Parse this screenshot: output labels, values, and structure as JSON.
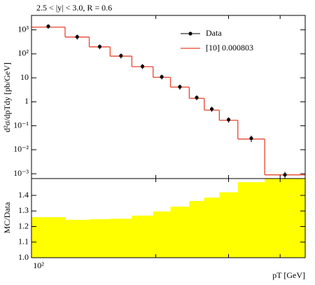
{
  "chart_data": {
    "type": "histogram-ratio",
    "title": "2.5 < |y| < 3.0, R = 0.6",
    "xlabel": "pT [GeV]",
    "ylabel": "d²σ/dpTdy [pb/GeV]",
    "ratio_ylabel": "MC/Data",
    "xlog": true,
    "ylog": true,
    "bins": [
      100,
      120.6,
      138,
      155,
      175,
      197,
      217,
      241,
      262,
      285,
      316,
      367,
      460
    ],
    "xlim": [
      100,
      460
    ],
    "xticks": [
      {
        "value": 100,
        "label": "10²"
      }
    ],
    "xminor_ticks": [
      200,
      300,
      400
    ],
    "ylim": [
      0.00063,
      4000
    ],
    "yticks": [
      {
        "value": 1000,
        "label": "10³"
      },
      {
        "value": 100,
        "label": "10²"
      },
      10,
      1,
      {
        "value": 0.1,
        "label": "10⁻¹"
      },
      {
        "value": 0.01,
        "label": "10⁻²"
      },
      {
        "value": 0.001,
        "label": "10⁻³"
      }
    ],
    "series": [
      {
        "name": "Data",
        "color": "#000000",
        "values": [
          1400,
          510,
          200,
          83,
          30,
          11,
          4.2,
          1.5,
          0.5,
          0.18,
          0.03,
          0.0009
        ],
        "errors": [
          300,
          120,
          45,
          19,
          7,
          2.5,
          1,
          0.35,
          0.12,
          0.045,
          0.009,
          0.0003
        ]
      },
      {
        "name": "[10] 0.000803",
        "color": "#e8442c",
        "values": [
          1300,
          500,
          195,
          80,
          29,
          10.5,
          4.1,
          1.4,
          0.45,
          0.17,
          0.028,
          0.0009
        ]
      }
    ],
    "ratio": {
      "color": "#ffff00",
      "values": [
        1.26,
        1.243,
        1.247,
        1.25,
        1.27,
        1.297,
        1.328,
        1.364,
        1.386,
        1.42,
        1.485,
        1.52
      ]
    },
    "ratio_ylim": [
      1.0,
      1.508
    ],
    "ratio_yticks": [
      {
        "value": 1.0,
        "label": "1.0"
      },
      1.1,
      1.2,
      1.3,
      1.4
    ],
    "legend": "upper right"
  }
}
